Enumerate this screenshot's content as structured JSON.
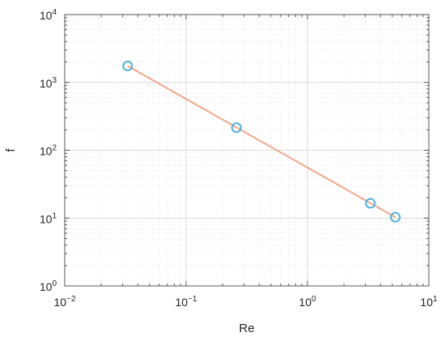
{
  "chart_data": {
    "type": "scatter",
    "title": "",
    "xlabel": "Re",
    "ylabel": "f",
    "xscale": "log",
    "yscale": "log",
    "xlim": [
      0.01,
      10
    ],
    "ylim": [
      1,
      10000
    ],
    "grid": true,
    "legend": "none",
    "x_ticks": [
      {
        "value": 0.01,
        "base": "10",
        "exp": "−2"
      },
      {
        "value": 0.1,
        "base": "10",
        "exp": "−1"
      },
      {
        "value": 1,
        "base": "10",
        "exp": "0"
      },
      {
        "value": 10,
        "base": "10",
        "exp": "1"
      }
    ],
    "y_ticks": [
      {
        "value": 1,
        "base": "10",
        "exp": "0"
      },
      {
        "value": 10,
        "base": "10",
        "exp": "1"
      },
      {
        "value": 100,
        "base": "10",
        "exp": "2"
      },
      {
        "value": 1000,
        "base": "10",
        "exp": "3"
      },
      {
        "value": 10000,
        "base": "10",
        "exp": "4"
      }
    ],
    "series": [
      {
        "marker": "circle",
        "points": [
          {
            "x": 0.033,
            "y": 1750
          },
          {
            "x": 0.26,
            "y": 215
          },
          {
            "x": 3.3,
            "y": 16.5
          },
          {
            "x": 5.3,
            "y": 10.3
          }
        ]
      }
    ],
    "fit_line": {
      "from": {
        "x": 0.033,
        "y": 1750
      },
      "to": {
        "x": 5.3,
        "y": 10.3
      }
    },
    "colors": {
      "marker": "#4db3dd",
      "fit_line": "#f2a58a",
      "axis": "#555555",
      "grid": "#d9d9d9",
      "minor_grid": "#ececec"
    }
  }
}
